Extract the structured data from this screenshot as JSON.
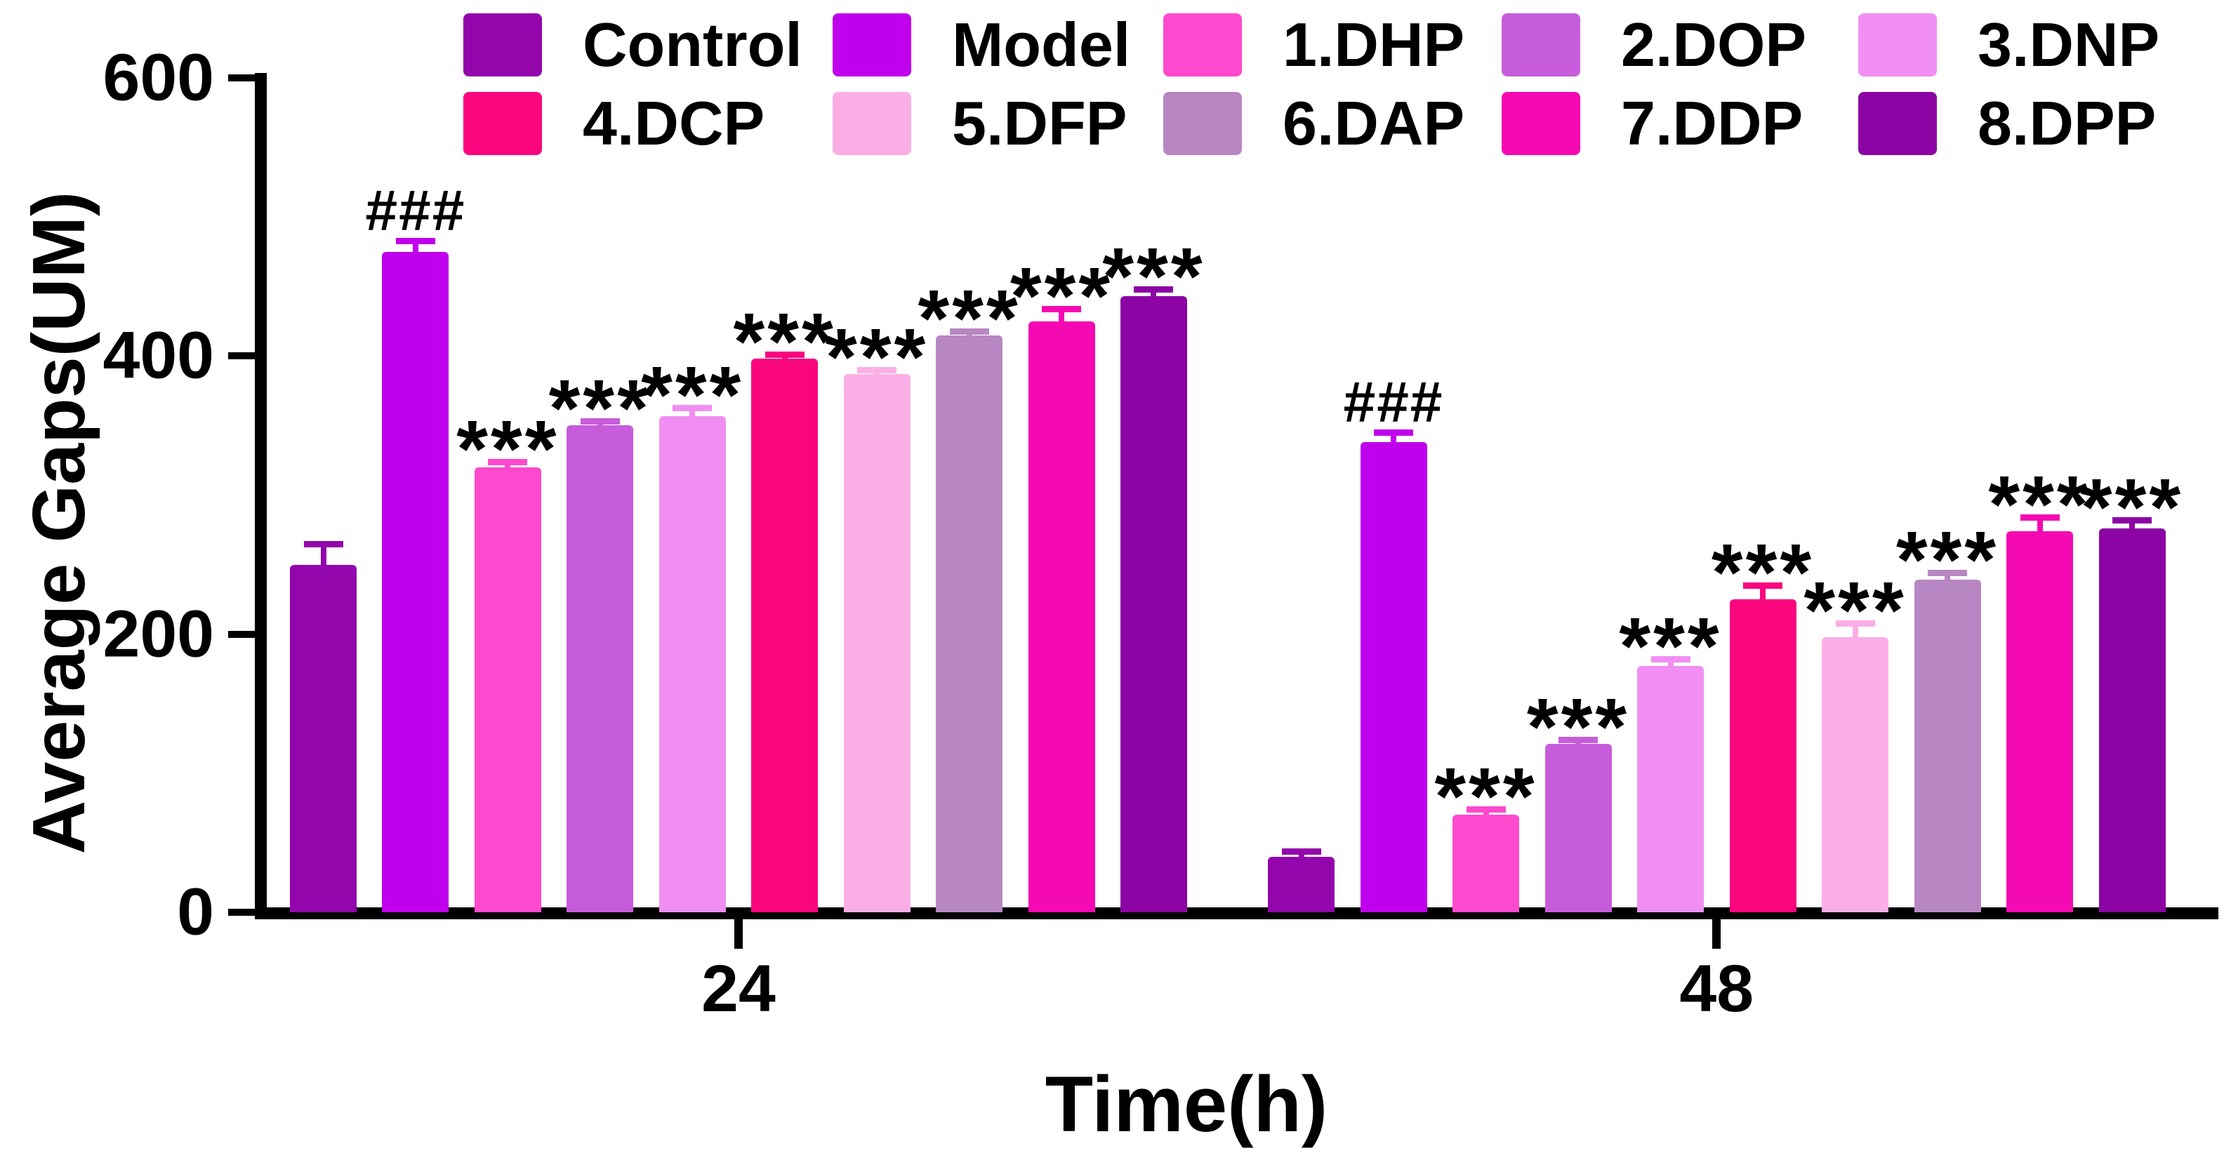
{
  "chart_data": {
    "type": "bar",
    "title": "",
    "xlabel": "Time(h)",
    "ylabel": "Average Gaps(UM)",
    "ylim": [
      0,
      600
    ],
    "yticks": [
      0,
      200,
      400,
      600
    ],
    "categories": [
      "24",
      "48"
    ],
    "grid": false,
    "legend_position": "top",
    "legend_rows": [
      [
        "Control",
        "Model",
        "1.DHP",
        "2.DOP",
        "3.DNP"
      ],
      [
        "4.DCP",
        "5.DFP",
        "6.DAP",
        "7.DDP",
        "8.DPP"
      ]
    ],
    "series": [
      {
        "name": "Control",
        "color": "#9306AC",
        "values": [
          250,
          40
        ],
        "sem": [
          15,
          4
        ],
        "annotations": [
          "",
          ""
        ]
      },
      {
        "name": "Model",
        "color": "#C000EC",
        "values": [
          475,
          338
        ],
        "sem": [
          8,
          7
        ],
        "annotations": [
          "###",
          "###"
        ]
      },
      {
        "name": "1.DHP",
        "color": "#FF49CE",
        "values": [
          320,
          70
        ],
        "sem": [
          4,
          4
        ],
        "annotations": [
          "***",
          "***"
        ]
      },
      {
        "name": "2.DOP",
        "color": "#C75CDB",
        "values": [
          350,
          121
        ],
        "sem": [
          3,
          3
        ],
        "annotations": [
          "***",
          "***"
        ]
      },
      {
        "name": "3.DNP",
        "color": "#F18EF3",
        "values": [
          357,
          177
        ],
        "sem": [
          6,
          5
        ],
        "annotations": [
          "***",
          "***"
        ]
      },
      {
        "name": "4.DCP",
        "color": "#F9067F",
        "values": [
          398,
          225
        ],
        "sem": [
          3,
          10
        ],
        "annotations": [
          "***",
          "***"
        ]
      },
      {
        "name": "5.DFP",
        "color": "#FBAEE6",
        "values": [
          387,
          198
        ],
        "sem": [
          3,
          10
        ],
        "annotations": [
          "***",
          "***"
        ]
      },
      {
        "name": "6.DAP",
        "color": "#B887C3",
        "values": [
          415,
          239
        ],
        "sem": [
          3,
          5
        ],
        "annotations": [
          "***",
          "***"
        ]
      },
      {
        "name": "7.DDP",
        "color": "#F509B2",
        "values": [
          425,
          274
        ],
        "sem": [
          9,
          10
        ],
        "annotations": [
          "***",
          "***"
        ]
      },
      {
        "name": "8.DPP",
        "color": "#8C05A4",
        "values": [
          443,
          276
        ],
        "sem": [
          5,
          6
        ],
        "annotations": [
          "***",
          "***"
        ]
      }
    ]
  }
}
